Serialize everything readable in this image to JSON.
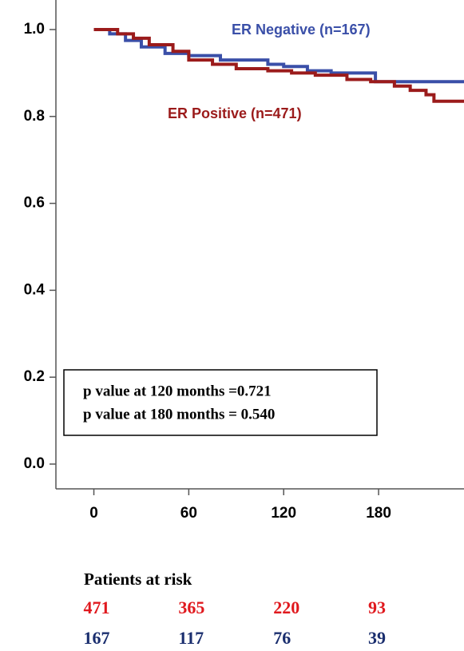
{
  "chart_data": {
    "type": "step",
    "xlim": [
      -24,
      234
    ],
    "ylim": [
      -0.057,
      1.068
    ],
    "xticks": [
      0,
      60,
      120,
      180
    ],
    "yticks": [
      {
        "value": 0,
        "label": "0.0"
      },
      0.2,
      0.4,
      0.6,
      0.8,
      {
        "value": 1,
        "label": "1.0"
      }
    ],
    "series": [
      {
        "name": "ER Negative (n=167)",
        "color": "#3a4fa8",
        "x": [
          0,
          10,
          20,
          30,
          45,
          60,
          80,
          110,
          120,
          135,
          150,
          178,
          234
        ],
        "values": [
          1.0,
          0.99,
          0.975,
          0.96,
          0.945,
          0.94,
          0.93,
          0.92,
          0.915,
          0.905,
          0.9,
          0.88,
          0.88
        ]
      },
      {
        "name": "ER Positive (n=471)",
        "color": "#9b1b1b",
        "x": [
          0,
          15,
          25,
          35,
          50,
          60,
          75,
          90,
          110,
          125,
          140,
          160,
          175,
          190,
          200,
          210,
          215,
          234
        ],
        "values": [
          1.0,
          0.99,
          0.98,
          0.965,
          0.95,
          0.93,
          0.92,
          0.91,
          0.905,
          0.9,
          0.895,
          0.885,
          0.88,
          0.87,
          0.86,
          0.85,
          0.835,
          0.835
        ]
      }
    ],
    "annotations": [
      "p value at 120 months =0.721",
      "p value at 180 months = 0.540"
    ],
    "risk_table": {
      "title": "Patients at risk",
      "rows": [
        {
          "color": "#e0191e",
          "values": [
            471,
            365,
            220,
            93
          ]
        },
        {
          "color": "#1a2e6e",
          "values": [
            167,
            117,
            76,
            39
          ]
        }
      ]
    }
  }
}
